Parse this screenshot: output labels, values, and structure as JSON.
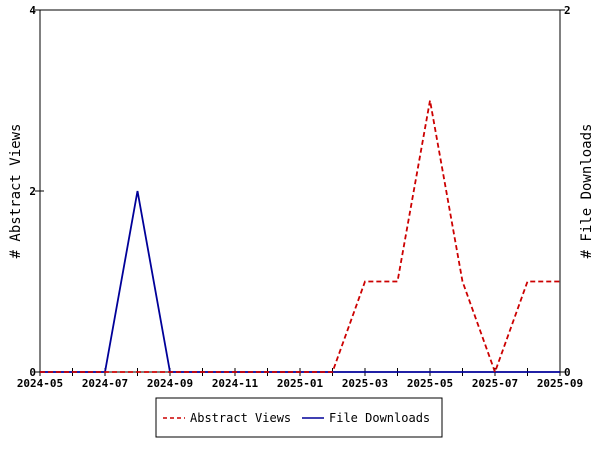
{
  "chart_data": {
    "type": "line",
    "title": "",
    "xlabel": "",
    "ylabel_left": "# Abstract Views",
    "ylabel_right": "# File Downloads",
    "x": [
      "2024-05",
      "2024-06",
      "2024-07",
      "2024-08",
      "2024-09",
      "2024-10",
      "2024-11",
      "2024-12",
      "2025-01",
      "2025-02",
      "2025-03",
      "2025-04",
      "2025-05",
      "2025-06",
      "2025-07",
      "2025-08",
      "2025-09"
    ],
    "x_tick_labels": [
      "2024-05",
      "2024-07",
      "2024-09",
      "2024-11",
      "2025-01",
      "2025-03",
      "2025-05",
      "2025-07",
      "2025-09"
    ],
    "ylim_left": [
      0,
      4
    ],
    "yticks_left": [
      "0",
      "2",
      "4"
    ],
    "ylim_right": [
      0,
      2
    ],
    "yticks_right": [
      "0",
      "2"
    ],
    "grid": false,
    "legend_position": "bottom",
    "series": [
      {
        "name": "Abstract Views",
        "axis": "left",
        "color": "#cc0000",
        "style": "dashed",
        "values": [
          0,
          0,
          0,
          0,
          0,
          0,
          0,
          0,
          0,
          0,
          1,
          1,
          3,
          1,
          0,
          1,
          1
        ]
      },
      {
        "name": "File Downloads",
        "axis": "right",
        "color": "#000099",
        "style": "solid",
        "values": [
          0,
          0,
          0,
          1,
          0,
          0,
          0,
          0,
          0,
          0,
          0,
          0,
          0,
          0,
          0,
          0,
          0
        ]
      }
    ]
  }
}
